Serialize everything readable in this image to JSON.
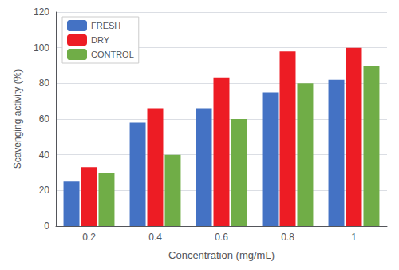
{
  "chart_data": {
    "type": "bar",
    "categories": [
      "0.2",
      "0.4",
      "0.6",
      "0.8",
      "1"
    ],
    "series": [
      {
        "name": "FRESH",
        "color": "#4472c4",
        "values": [
          25,
          58,
          66,
          75,
          82
        ]
      },
      {
        "name": "DRY",
        "color": "#ed1c24",
        "values": [
          33,
          66,
          83,
          98,
          100
        ]
      },
      {
        "name": "CONTROL",
        "color": "#70ad47",
        "values": [
          30,
          40,
          60,
          80,
          90
        ]
      }
    ],
    "xlabel": "Concentration (mg/mL)",
    "ylabel": "Scavenging activity (%)",
    "ylim": [
      0,
      120
    ],
    "yticks": [
      0,
      20,
      40,
      60,
      80,
      100,
      120
    ],
    "grid": true,
    "legend": "upper left"
  }
}
